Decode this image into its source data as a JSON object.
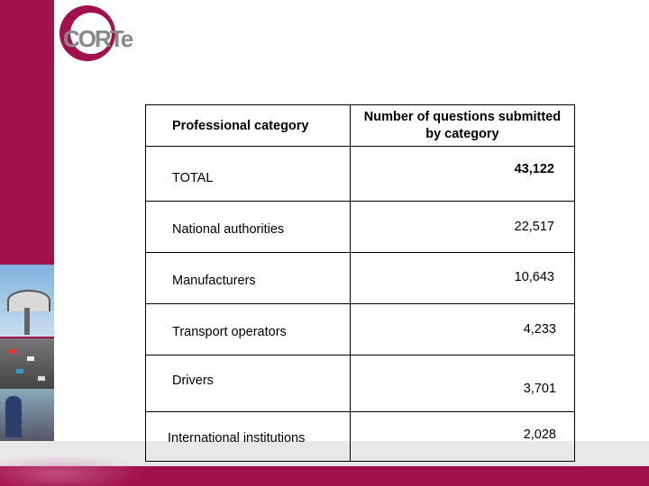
{
  "logo": {
    "text": "CORTe"
  },
  "table": {
    "header": {
      "category": "Professional category",
      "count_line1": "Number of questions submitted",
      "count_line2": "by category"
    },
    "rows": [
      {
        "category": "TOTAL",
        "count": "43,122"
      },
      {
        "category": "National authorities",
        "count": "22,517"
      },
      {
        "category": "Manufacturers",
        "count": "10,643"
      },
      {
        "category": "Transport operators",
        "count": "4,233"
      },
      {
        "category": "Drivers",
        "count": "3,701"
      },
      {
        "category": "International institutions",
        "count": "2,028"
      }
    ]
  },
  "colors": {
    "accent": "#a2104e",
    "footer_light": "#e8e8e8"
  }
}
